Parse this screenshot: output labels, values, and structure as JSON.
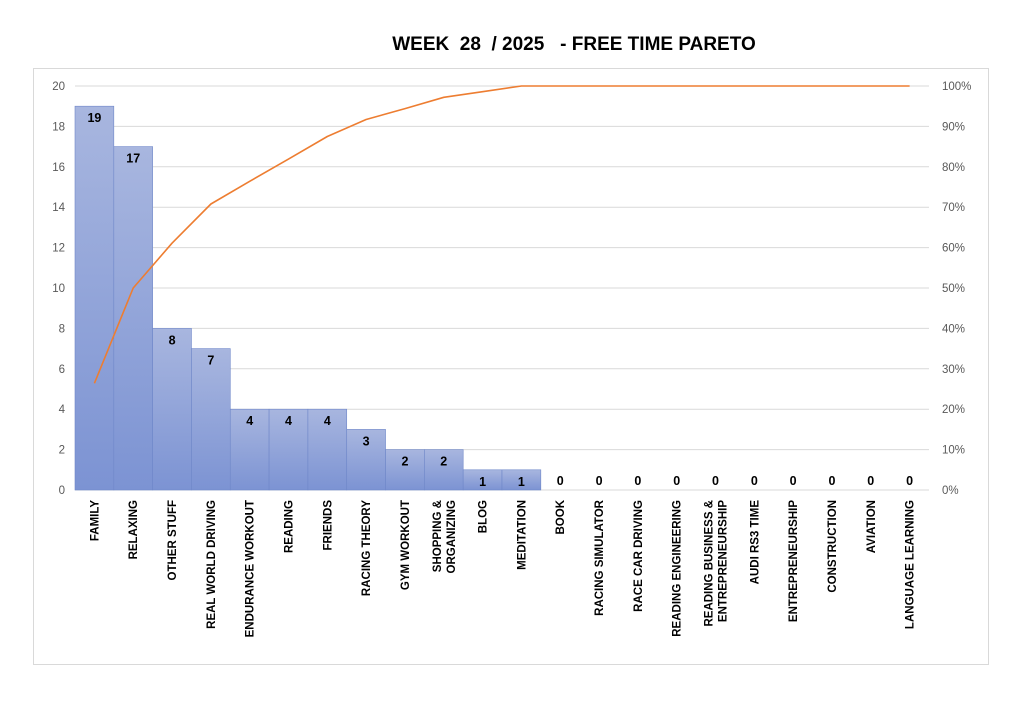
{
  "chart_data": {
    "type": "bar",
    "title": "WEEK  28  / 2025   - FREE TIME PARETO",
    "categories": [
      "FAMILY",
      "RELAXING",
      "OTHER STUFF",
      "REAL WORLD DRIVING",
      "ENDURANCE WORKOUT",
      "READING",
      "FRIENDS",
      "RACING THEORY",
      "GYM WORKOUT",
      "SHOPPING & ORGANIZING",
      "BLOG",
      "MEDITATION",
      "BOOK",
      "RACING SIMULATOR",
      "RACE CAR DRIVING",
      "READING ENGINEERING",
      "READING BUSINESS & ENTREPRENEURSHIP",
      "AUDI RS3 TIME",
      "ENTREPRENEURSHIP",
      "CONSTRUCTION",
      "AVIATION",
      "LANGUAGE LEARNING"
    ],
    "category_label_lines": [
      [
        "FAMILY"
      ],
      [
        "RELAXING"
      ],
      [
        "OTHER STUFF"
      ],
      [
        "REAL WORLD DRIVING"
      ],
      [
        "ENDURANCE WORKOUT"
      ],
      [
        "READING"
      ],
      [
        "FRIENDS"
      ],
      [
        "RACING THEORY"
      ],
      [
        "GYM WORKOUT"
      ],
      [
        "SHOPPING &",
        "ORGANIZING"
      ],
      [
        "BLOG"
      ],
      [
        "MEDITATION"
      ],
      [
        "BOOK"
      ],
      [
        "RACING SIMULATOR"
      ],
      [
        "RACE CAR DRIVING"
      ],
      [
        "READING ENGINEERING"
      ],
      [
        "READING BUSINESS &",
        "ENTREPRENEURSHIP"
      ],
      [
        "AUDI RS3 TIME"
      ],
      [
        "ENTREPRENEURSHIP"
      ],
      [
        "CONSTRUCTION"
      ],
      [
        "AVIATION"
      ],
      [
        "LANGUAGE LEARNING"
      ]
    ],
    "series": [
      {
        "type": "bar",
        "axis": "left",
        "values": [
          19,
          17,
          8,
          7,
          4,
          4,
          4,
          3,
          2,
          2,
          1,
          1,
          0,
          0,
          0,
          0,
          0,
          0,
          0,
          0,
          0,
          0
        ]
      },
      {
        "type": "line",
        "axis": "right",
        "values": [
          26.4,
          50.0,
          61.1,
          70.8,
          76.4,
          81.9,
          87.5,
          91.7,
          94.4,
          97.2,
          98.6,
          100,
          100,
          100,
          100,
          100,
          100,
          100,
          100,
          100,
          100,
          100
        ]
      }
    ],
    "y_left": {
      "ylim": [
        0,
        20
      ],
      "ticks": [
        "0",
        "2",
        "4",
        "6",
        "8",
        "10",
        "12",
        "14",
        "16",
        "18",
        "20"
      ]
    },
    "y_right": {
      "ylim": [
        0,
        100
      ],
      "ticks": [
        "0%",
        "10%",
        "20%",
        "30%",
        "40%",
        "50%",
        "60%",
        "70%",
        "80%",
        "90%",
        "100%"
      ]
    },
    "grid": true,
    "legend": "none",
    "colors": {
      "bar_top": "#a8b6df",
      "bar_bottom": "#7c93d3",
      "bar_edge": "#6f87c9",
      "line": "#ed7d31",
      "grid": "#d9d9d9"
    }
  }
}
